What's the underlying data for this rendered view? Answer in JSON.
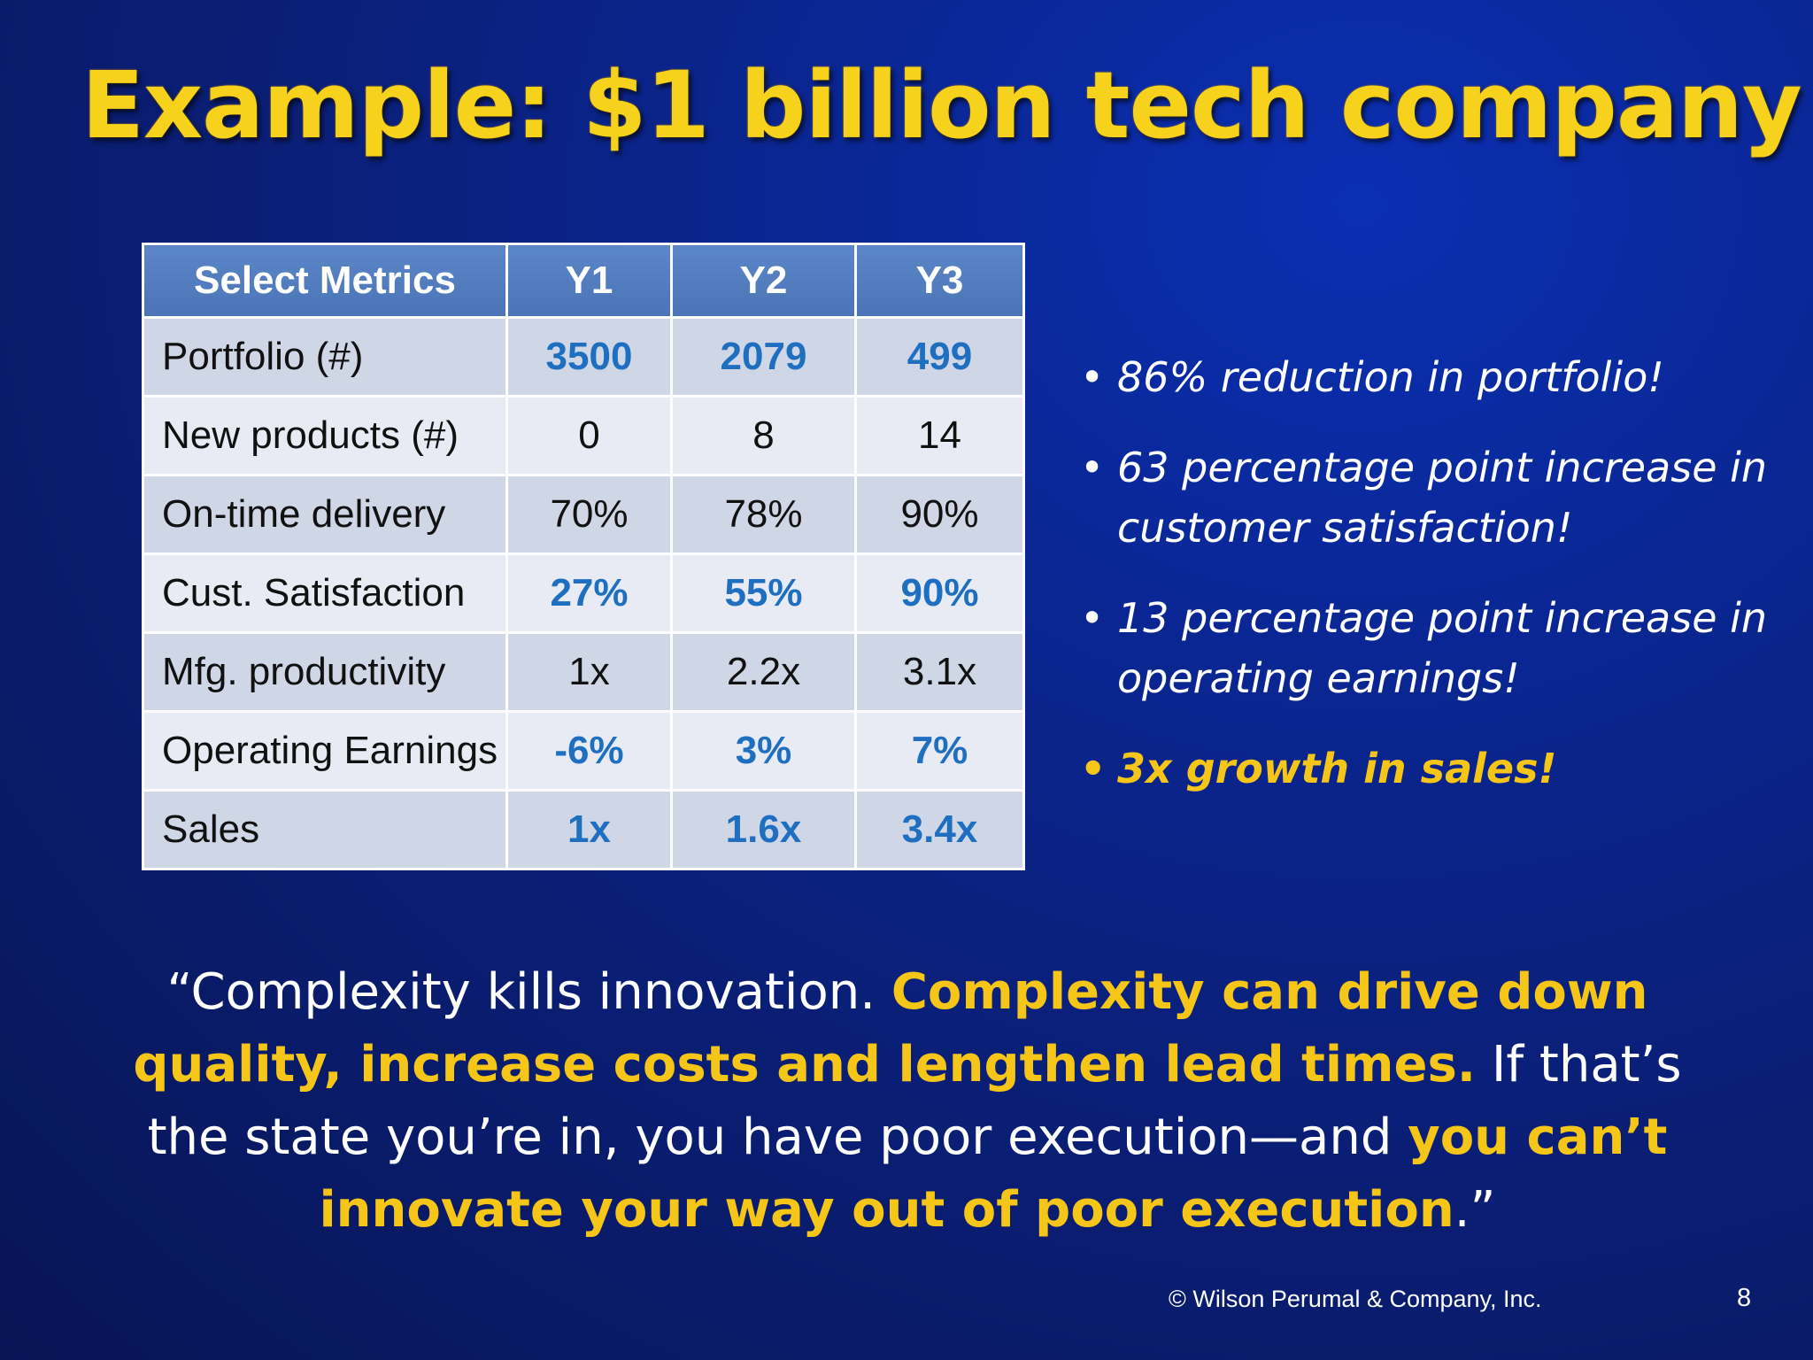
{
  "title": "Example:  $1 billion tech company",
  "table": {
    "headers": [
      "Select Metrics",
      "Y1",
      "Y2",
      "Y3"
    ],
    "rows": [
      {
        "label": "Portfolio (#)",
        "values": [
          "3500",
          "2079",
          "499"
        ],
        "highlight": true
      },
      {
        "label": "New products (#)",
        "values": [
          "0",
          "8",
          "14"
        ],
        "highlight": false
      },
      {
        "label": "On-time delivery",
        "values": [
          "70%",
          "78%",
          "90%"
        ],
        "highlight": false
      },
      {
        "label": "Cust. Satisfaction",
        "values": [
          "27%",
          "55%",
          "90%"
        ],
        "highlight": true
      },
      {
        "label": "Mfg. productivity",
        "values": [
          "1x",
          "2.2x",
          "3.1x"
        ],
        "highlight": false
      },
      {
        "label": "Operating Earnings",
        "values": [
          "-6%",
          "3%",
          "7%"
        ],
        "highlight": true
      },
      {
        "label": "Sales",
        "values": [
          "1x",
          "1.6x",
          "3.4x"
        ],
        "highlight": true
      }
    ]
  },
  "bullets": [
    {
      "text": "86% reduction in portfolio!"
    },
    {
      "text": "63 percentage point increase in customer satisfaction!"
    },
    {
      "text": "13 percentage point increase in operating earnings!"
    },
    {
      "text": "3x growth in sales!"
    }
  ],
  "bullet_glyph": "•",
  "quote": {
    "p1": "“Complexity kills innovation.  ",
    "p2": "Complexity can drive down quality, increase costs and lengthen lead times.",
    "p3": "  If that’s the state you’re in, you have poor execution—and ",
    "p4": "you can’t innovate your way out of poor execution",
    "p5": ".”"
  },
  "footer": "© Wilson Perumal & Company, Inc.",
  "page_number": "8",
  "colors": {
    "title": "#f7d21c",
    "highlight_text": "#1f6fc0",
    "header_bg": "#4f7bc0",
    "accent_yellow": "#f5c518",
    "background": "#0a1f78"
  }
}
